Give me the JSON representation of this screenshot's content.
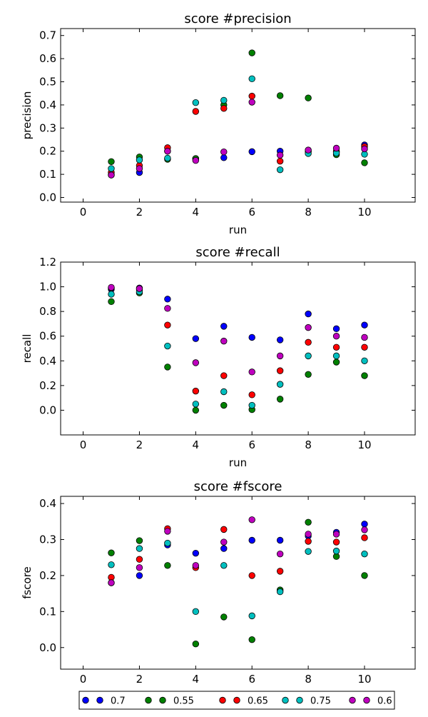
{
  "chart_data": [
    {
      "type": "scatter",
      "title": "score #precision",
      "xlabel": "run",
      "ylabel": "precision",
      "xlim": [
        -0.8,
        11.8
      ],
      "ylim": [
        -0.02,
        0.73
      ],
      "xticks": [
        "0",
        "2",
        "4",
        "6",
        "8",
        "10"
      ],
      "xtick_values": [
        0,
        2,
        4,
        6,
        8,
        10
      ],
      "yticks": [
        "0.0",
        "0.1",
        "0.2",
        "0.3",
        "0.4",
        "0.5",
        "0.6",
        "0.7"
      ],
      "ytick_values": [
        0.0,
        0.1,
        0.2,
        0.3,
        0.4,
        0.5,
        0.6,
        0.7
      ],
      "grid": false,
      "x": [
        1,
        2,
        3,
        4,
        5,
        6,
        7,
        8,
        9,
        10
      ],
      "series": [
        {
          "name": "0.7",
          "color": "#0000ff",
          "values": [
            0.097,
            0.108,
            0.2,
            0.168,
            0.172,
            0.198,
            0.2,
            0.197,
            0.196,
            0.227
          ]
        },
        {
          "name": "0.55",
          "color": "#008000",
          "values": [
            0.155,
            0.175,
            0.165,
            0.168,
            0.4,
            0.625,
            0.44,
            0.43,
            0.185,
            0.15
          ]
        },
        {
          "name": "0.65",
          "color": "#ff0000",
          "values": [
            0.108,
            0.138,
            0.215,
            0.372,
            0.385,
            0.438,
            0.157,
            0.2,
            0.2,
            0.22
          ]
        },
        {
          "name": "0.75",
          "color": "#00bfbf",
          "values": [
            0.125,
            0.162,
            0.17,
            0.41,
            0.42,
            0.513,
            0.12,
            0.19,
            0.192,
            0.187
          ]
        },
        {
          "name": "0.6",
          "color": "#bf00bf",
          "values": [
            0.097,
            0.125,
            0.2,
            0.16,
            0.197,
            0.412,
            0.183,
            0.205,
            0.213,
            0.21
          ]
        }
      ]
    },
    {
      "type": "scatter",
      "title": "score #recall",
      "xlabel": "run",
      "ylabel": "recall",
      "xlim": [
        -0.8,
        11.8
      ],
      "ylim": [
        -0.2,
        1.2
      ],
      "xticks": [
        "0",
        "2",
        "4",
        "6",
        "8",
        "10"
      ],
      "xtick_values": [
        0,
        2,
        4,
        6,
        8,
        10
      ],
      "yticks": [
        "0.0",
        "0.2",
        "0.4",
        "0.6",
        "0.8",
        "1.0",
        "1.2"
      ],
      "ytick_values": [
        0.0,
        0.2,
        0.4,
        0.6,
        0.8,
        1.0,
        1.2
      ],
      "grid": false,
      "x": [
        1,
        2,
        3,
        4,
        5,
        6,
        7,
        8,
        9,
        10
      ],
      "series": [
        {
          "name": "0.7",
          "color": "#0000ff",
          "values": [
            0.98,
            0.99,
            0.9,
            0.58,
            0.68,
            0.59,
            0.57,
            0.78,
            0.66,
            0.69
          ]
        },
        {
          "name": "0.55",
          "color": "#008000",
          "values": [
            0.88,
            0.95,
            0.35,
            0.0,
            0.04,
            0.005,
            0.09,
            0.29,
            0.39,
            0.28
          ]
        },
        {
          "name": "0.65",
          "color": "#ff0000",
          "values": [
            0.99,
            0.975,
            0.69,
            0.155,
            0.28,
            0.125,
            0.32,
            0.55,
            0.51,
            0.51
          ]
        },
        {
          "name": "0.75",
          "color": "#00bfbf",
          "values": [
            0.94,
            0.96,
            0.52,
            0.05,
            0.15,
            0.04,
            0.21,
            0.44,
            0.44,
            0.4
          ]
        },
        {
          "name": "0.6",
          "color": "#bf00bf",
          "values": [
            0.995,
            0.985,
            0.825,
            0.385,
            0.56,
            0.31,
            0.44,
            0.67,
            0.6,
            0.59
          ]
        }
      ]
    },
    {
      "type": "scatter",
      "title": "score #fscore",
      "xlabel": "",
      "ylabel": "fscore",
      "xlim": [
        -0.8,
        11.8
      ],
      "ylim": [
        -0.06,
        0.42
      ],
      "xticks": [
        "0",
        "2",
        "4",
        "6",
        "8",
        "10"
      ],
      "xtick_values": [
        0,
        2,
        4,
        6,
        8,
        10
      ],
      "yticks": [
        "0.0",
        "0.1",
        "0.2",
        "0.3",
        "0.4"
      ],
      "ytick_values": [
        0.0,
        0.1,
        0.2,
        0.3,
        0.4
      ],
      "grid": false,
      "x": [
        1,
        2,
        3,
        4,
        5,
        6,
        7,
        8,
        9,
        10
      ],
      "series": [
        {
          "name": "0.7",
          "color": "#0000ff",
          "values": [
            0.18,
            0.2,
            0.285,
            0.262,
            0.275,
            0.298,
            0.298,
            0.31,
            0.32,
            0.343
          ]
        },
        {
          "name": "0.55",
          "color": "#008000",
          "values": [
            0.263,
            0.297,
            0.228,
            0.01,
            0.085,
            0.022,
            0.16,
            0.348,
            0.253,
            0.2
          ]
        },
        {
          "name": "0.65",
          "color": "#ff0000",
          "values": [
            0.195,
            0.245,
            0.33,
            0.222,
            0.328,
            0.2,
            0.212,
            0.295,
            0.293,
            0.305
          ]
        },
        {
          "name": "0.75",
          "color": "#00bfbf",
          "values": [
            0.23,
            0.275,
            0.29,
            0.1,
            0.228,
            0.088,
            0.155,
            0.267,
            0.268,
            0.26
          ]
        },
        {
          "name": "0.6",
          "color": "#bf00bf",
          "values": [
            0.18,
            0.222,
            0.323,
            0.228,
            0.293,
            0.355,
            0.26,
            0.315,
            0.315,
            0.327
          ]
        }
      ]
    }
  ],
  "legend": {
    "placement": "bottom",
    "entries": [
      {
        "label": "0.7",
        "color": "#0000ff"
      },
      {
        "label": "0.55",
        "color": "#008000"
      },
      {
        "label": "0.65",
        "color": "#ff0000"
      },
      {
        "label": "0.75",
        "color": "#00bfbf"
      },
      {
        "label": "0.6",
        "color": "#bf00bf"
      }
    ]
  }
}
